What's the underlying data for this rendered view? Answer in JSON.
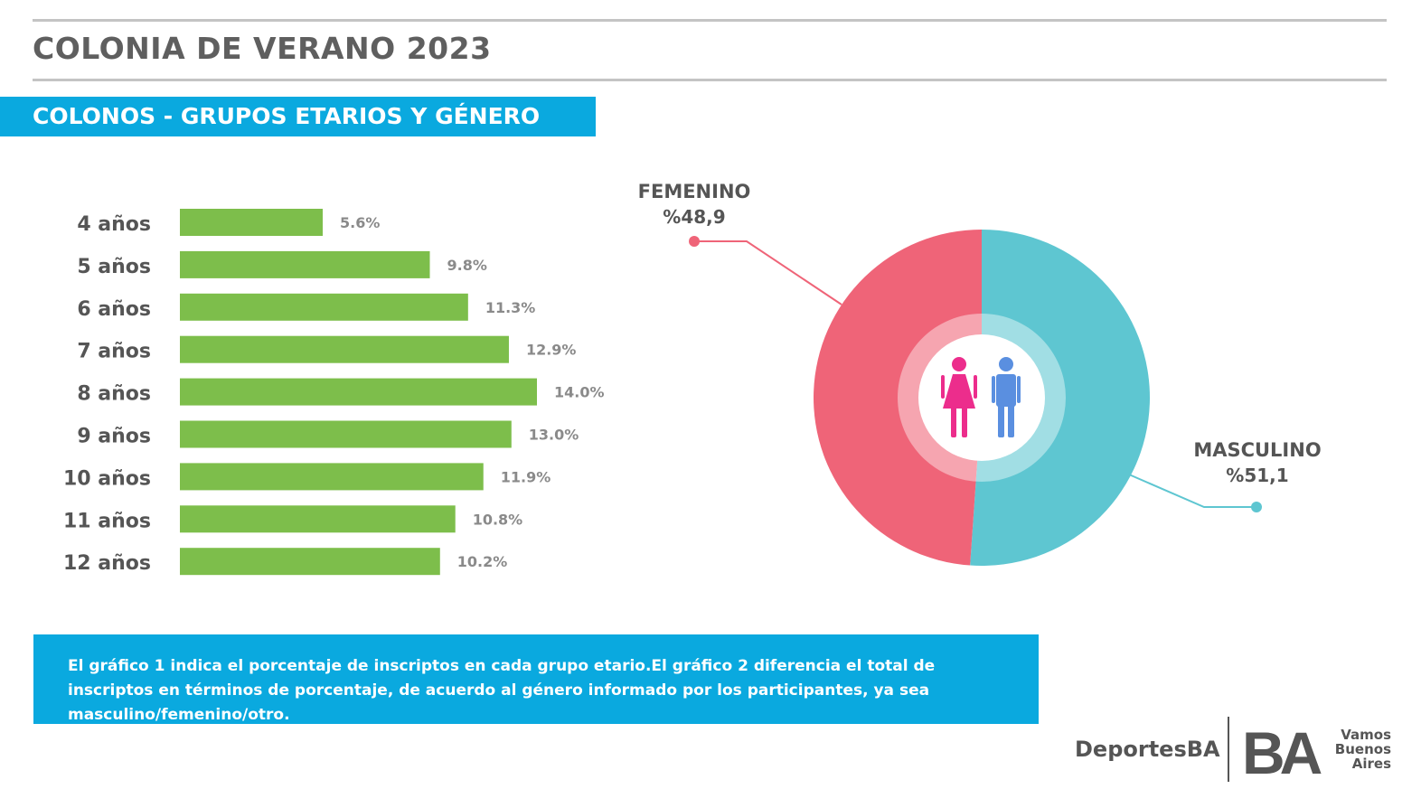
{
  "header": {
    "title": "COLONIA DE VERANO 2023",
    "section_title": "COLONOS - GRUPOS ETARIOS Y GÉNERO"
  },
  "chart_data": [
    {
      "type": "bar",
      "orientation": "horizontal",
      "categories": [
        "4 años",
        "5 años",
        "6 años",
        "7 años",
        "8 años",
        "9 años",
        "10 años",
        "11 años",
        "12 años"
      ],
      "values": [
        5.6,
        9.8,
        11.3,
        12.9,
        14.0,
        13.0,
        11.9,
        10.8,
        10.2
      ],
      "value_labels": [
        "5.6%",
        "9.8%",
        "11.3%",
        "12.9%",
        "14.0%",
        "13.0%",
        "11.9%",
        "10.8%",
        "10.2%"
      ],
      "bar_color": "#7dbe4b",
      "xlim": [
        0,
        14.0
      ]
    },
    {
      "type": "pie",
      "style": "donut",
      "slices": [
        {
          "label": "FEMENINO",
          "value": 48.9,
          "value_label": "%48,9",
          "color": "#ef6478"
        },
        {
          "label": "MASCULINO",
          "value": 51.1,
          "value_label": "%51,1",
          "color": "#5ec6d1"
        }
      ],
      "center_icons": [
        "female-figure-icon",
        "male-figure-icon"
      ]
    }
  ],
  "note": {
    "text": "El gráfico 1 indica el porcentaje de inscriptos en cada grupo etario.El gráfico 2 diferencia el total de inscriptos en términos de porcentaje, de acuerdo al género informado por los participantes, ya sea masculino/femenino/otro."
  },
  "footer": {
    "brand": "DeportesBA",
    "logo_letters": "BA",
    "tagline_lines": [
      "Vamos",
      "Buenos",
      "Aires"
    ]
  },
  "colors": {
    "accent": "#0aa9df",
    "bar": "#7dbe4b",
    "female": "#ef6478",
    "male": "#5ec6d1",
    "text": "#555555"
  }
}
